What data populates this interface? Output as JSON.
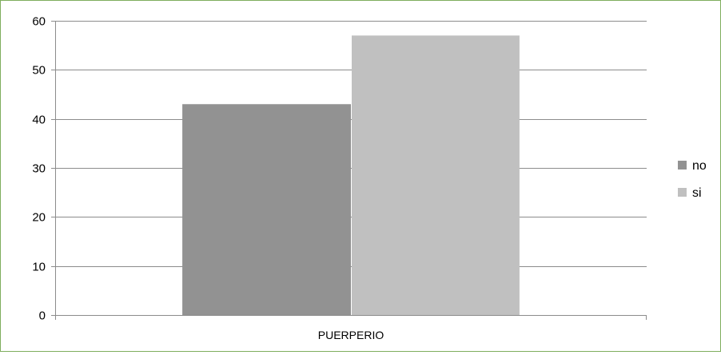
{
  "chart_data": {
    "type": "bar",
    "title": "",
    "xlabel": "",
    "ylabel": "",
    "categories": [
      "PUERPERIO"
    ],
    "series": [
      {
        "name": "no",
        "values": [
          43
        ],
        "color": "#929292"
      },
      {
        "name": "si",
        "values": [
          57
        ],
        "color": "#c0c0c0"
      }
    ],
    "ylim": [
      0,
      60
    ],
    "yticks": [
      "0",
      "10",
      "20",
      "30",
      "40",
      "50",
      "60"
    ],
    "grid": true,
    "legend": "right"
  }
}
